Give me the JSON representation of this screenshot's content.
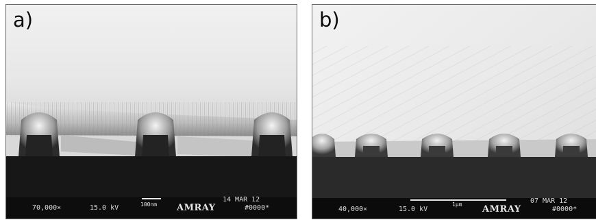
{
  "panels": [
    {
      "label": "a)",
      "magnification": "70,000×",
      "voltage": "15.0 kV",
      "scale_label": "100nm",
      "brand": "AMRAY",
      "date": "14 MAR 12",
      "image_number": "#0000*"
    },
    {
      "label": "b)",
      "magnification": "40,000×",
      "voltage": "15.0 kV",
      "scale_label": "1μm",
      "brand": "AMRAY",
      "date": "07 MAR 12",
      "image_number": "#0000*"
    }
  ]
}
